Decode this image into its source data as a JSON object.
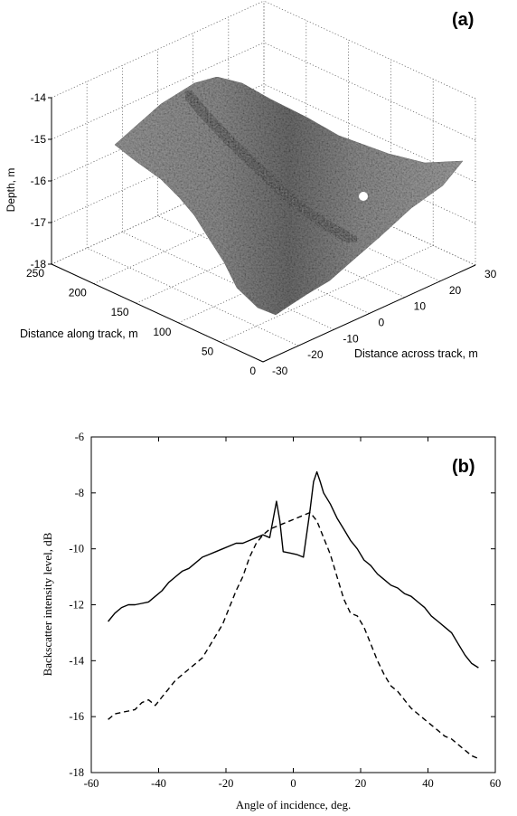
{
  "chart_data": [
    {
      "type": "surface",
      "panel_label": "(a)",
      "zlabel": "Depth, m",
      "xlabel": "Distance along track, m",
      "ylabel": "Distance across track, m",
      "zlim": [
        -18,
        -14
      ],
      "xlim": [
        0,
        250
      ],
      "ylim": [
        -30,
        30
      ],
      "z_ticks": [
        "-14",
        "-15",
        "-16",
        "-17",
        "-18"
      ],
      "x_ticks": [
        "250",
        "200",
        "150",
        "100",
        "50",
        "0"
      ],
      "y_ticks": [
        "-30",
        "-20",
        "-10",
        "0",
        "10",
        "20",
        "30"
      ],
      "grid": true
    },
    {
      "type": "line",
      "panel_label": "(b)",
      "xlabel": "Angle of incidence, deg.",
      "ylabel": "Backscatter intensity level, dB",
      "xlim": [
        -60,
        60
      ],
      "ylim": [
        -18,
        -6
      ],
      "x_ticks": [
        "-60",
        "-40",
        "-20",
        "0",
        "20",
        "40",
        "60"
      ],
      "y_ticks": [
        "-6",
        "-8",
        "-10",
        "-12",
        "-14",
        "-16",
        "-18"
      ],
      "grid": false,
      "series": [
        {
          "style": "solid",
          "x": [
            -55,
            -53,
            -51,
            -49,
            -47,
            -45,
            -43,
            -41,
            -39,
            -37,
            -35,
            -33,
            -31,
            -29,
            -27,
            -25,
            -23,
            -21,
            -19,
            -17,
            -15,
            -13,
            -11,
            -9,
            -7,
            -5,
            -4,
            -3,
            -1,
            1,
            3,
            5,
            6,
            7,
            8,
            9,
            11,
            13,
            15,
            17,
            19,
            21,
            23,
            25,
            27,
            29,
            31,
            33,
            35,
            37,
            39,
            41,
            43,
            45,
            47,
            49,
            51,
            53,
            55
          ],
          "y": [
            -12.6,
            -12.3,
            -12.1,
            -12.0,
            -12.0,
            -11.95,
            -11.9,
            -11.7,
            -11.5,
            -11.2,
            -11.0,
            -10.8,
            -10.7,
            -10.5,
            -10.3,
            -10.2,
            -10.1,
            -10.0,
            -9.9,
            -9.8,
            -9.8,
            -9.7,
            -9.6,
            -9.5,
            -9.6,
            -8.3,
            -9.0,
            -10.1,
            -10.15,
            -10.2,
            -10.3,
            -8.6,
            -7.6,
            -7.25,
            -7.6,
            -8.0,
            -8.4,
            -8.9,
            -9.3,
            -9.7,
            -10.0,
            -10.4,
            -10.6,
            -10.9,
            -11.1,
            -11.3,
            -11.4,
            -11.6,
            -11.7,
            -11.9,
            -12.1,
            -12.4,
            -12.6,
            -12.8,
            -13.0,
            -13.4,
            -13.8,
            -14.1,
            -14.25
          ]
        },
        {
          "style": "dashed",
          "x": [
            -55,
            -53,
            -51,
            -49,
            -47,
            -45,
            -43,
            -41,
            -39,
            -37,
            -35,
            -33,
            -31,
            -29,
            -27,
            -25,
            -23,
            -21,
            -19,
            -17,
            -15,
            -13,
            -11,
            -9,
            -7,
            -5,
            -3,
            -1,
            1,
            3,
            5,
            7,
            9,
            11,
            13,
            15,
            17,
            19,
            21,
            23,
            25,
            27,
            29,
            31,
            33,
            35,
            37,
            39,
            41,
            43,
            45,
            47,
            49,
            51,
            53,
            55
          ],
          "y": [
            -16.1,
            -15.9,
            -15.85,
            -15.8,
            -15.75,
            -15.5,
            -15.4,
            -15.6,
            -15.3,
            -15.0,
            -14.7,
            -14.5,
            -14.3,
            -14.1,
            -13.9,
            -13.5,
            -13.1,
            -12.7,
            -12.1,
            -11.5,
            -11.0,
            -10.3,
            -9.8,
            -9.5,
            -9.3,
            -9.2,
            -9.1,
            -9.0,
            -8.9,
            -8.8,
            -8.7,
            -9.0,
            -9.6,
            -10.2,
            -11.0,
            -11.8,
            -12.3,
            -12.4,
            -12.8,
            -13.4,
            -14.0,
            -14.5,
            -14.9,
            -15.1,
            -15.4,
            -15.7,
            -15.9,
            -16.1,
            -16.3,
            -16.5,
            -16.7,
            -16.8,
            -17.0,
            -17.2,
            -17.4,
            -17.5
          ]
        }
      ]
    }
  ]
}
